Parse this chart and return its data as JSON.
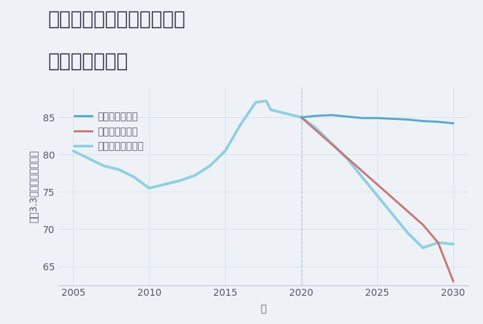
{
  "title_line1": "兵庫県西宮市津門大塚町の",
  "title_line2": "土地の価格推移",
  "xlabel": "年",
  "ylabel": "坪（3.3㎡）単価（万円）",
  "background_color": "#eef2f7",
  "good_scenario": {
    "label": "グッドシナリオ",
    "color": "#5ba8c8",
    "linewidth": 2.2,
    "years": [
      2020,
      2021,
      2022,
      2023,
      2024,
      2025,
      2026,
      2027,
      2028,
      2029,
      2030
    ],
    "values": [
      85.0,
      85.2,
      85.3,
      85.1,
      84.9,
      84.9,
      84.8,
      84.7,
      84.5,
      84.4,
      84.2
    ]
  },
  "bad_scenario": {
    "label": "バッドシナリオ",
    "color": "#c87878",
    "linewidth": 2.2,
    "years": [
      2020,
      2021,
      2022,
      2023,
      2024,
      2025,
      2026,
      2027,
      2028,
      2029,
      2030
    ],
    "values": [
      85.0,
      83.2,
      81.4,
      79.6,
      77.8,
      76.0,
      74.2,
      72.4,
      70.6,
      68.2,
      63.0
    ]
  },
  "normal_scenario": {
    "label": "ノーマルシナリオ",
    "color": "#90cfe0",
    "linewidth": 2.8,
    "years": [
      2005,
      2006,
      2007,
      2008,
      2009,
      2010,
      2011,
      2012,
      2013,
      2014,
      2015,
      2016,
      2017,
      2017.7,
      2018,
      2019,
      2020,
      2021,
      2022,
      2023,
      2024,
      2025,
      2026,
      2027,
      2028,
      2029,
      2030
    ],
    "values": [
      80.5,
      79.5,
      78.5,
      78.0,
      77.0,
      75.5,
      76.0,
      76.5,
      77.2,
      78.5,
      80.5,
      84.0,
      87.0,
      87.2,
      86.0,
      85.5,
      85.0,
      83.5,
      81.5,
      79.5,
      77.0,
      74.5,
      72.0,
      69.5,
      67.5,
      68.2,
      68.0
    ]
  },
  "ylim": [
    62.5,
    89
  ],
  "yticks": [
    65,
    70,
    75,
    80,
    85
  ],
  "xlim": [
    2004,
    2031
  ],
  "xticks": [
    2005,
    2010,
    2015,
    2020,
    2025,
    2030
  ],
  "vline_x": 2020,
  "grid_color": "#d8e4f0",
  "title_fontsize": 20,
  "axis_fontsize": 10,
  "legend_fontsize": 10,
  "tick_fontsize": 10
}
